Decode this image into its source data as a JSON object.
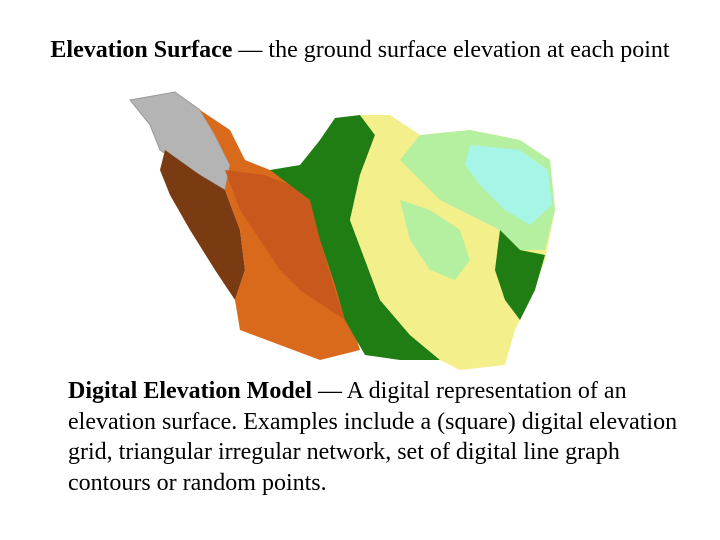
{
  "title": {
    "term": "Elevation Surface",
    "definition": "— the ground surface elevation at each point"
  },
  "body": {
    "term": "Digital Elevation Model",
    "definition": "— A digital representation of an elevation surface.  Examples include a (square) digital elevation grid, triangular irregular network, set of digital line graph contours or random points."
  }
}
